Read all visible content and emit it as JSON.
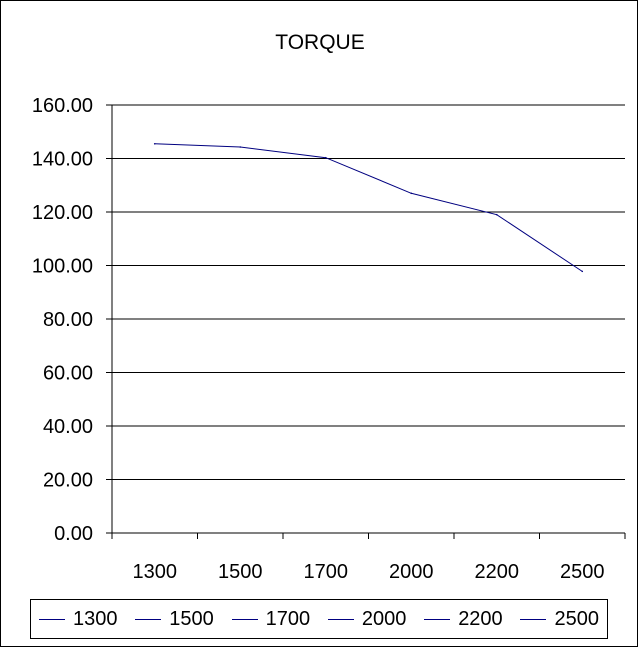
{
  "chart_data": {
    "type": "line",
    "title": "TORQUE",
    "categories": [
      "1300",
      "1500",
      "1700",
      "2000",
      "2200",
      "2500"
    ],
    "series": [
      {
        "values": [
          145.5,
          144.3,
          140.3,
          127.0,
          119.0,
          97.8
        ]
      }
    ],
    "ylim": [
      0,
      160
    ],
    "yticks": [
      "0.00",
      "20.00",
      "40.00",
      "60.00",
      "80.00",
      "100.00",
      "120.00",
      "140.00",
      "160.00"
    ],
    "grid": true,
    "line_color": "#000080",
    "legend": {
      "placement": "bottom",
      "entries": [
        "1300",
        "1500",
        "1700",
        "2000",
        "2200",
        "2500"
      ]
    }
  }
}
